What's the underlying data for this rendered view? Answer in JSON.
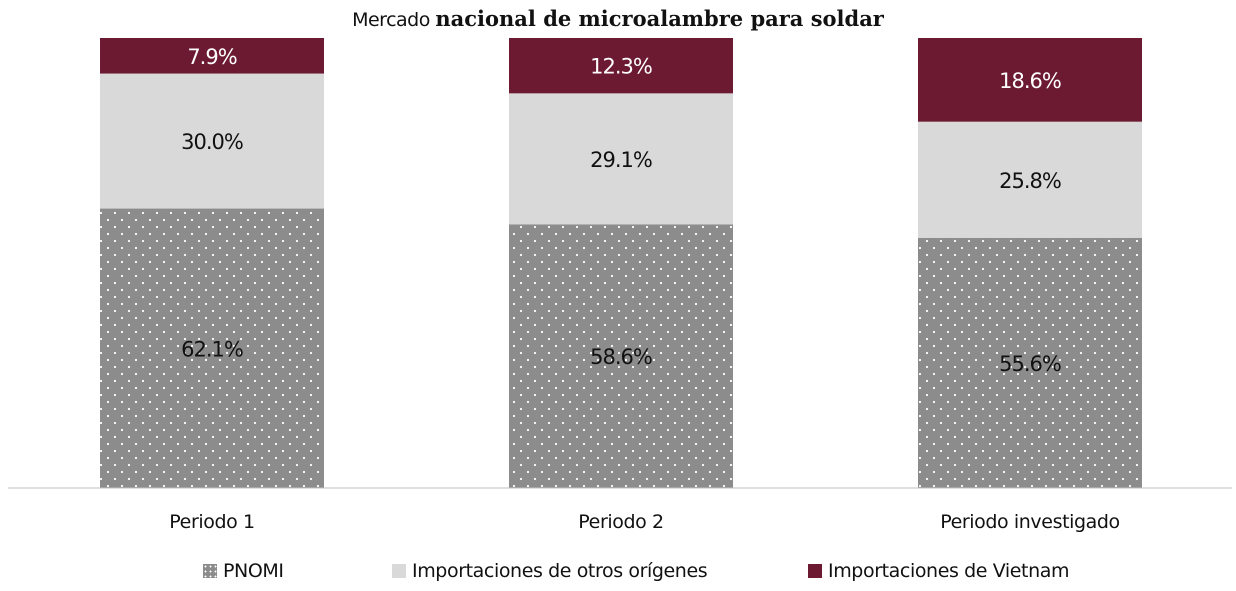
{
  "chart_data": {
    "type": "bar",
    "stacked": true,
    "title_parts": [
      "Mercado ",
      "nacional de microalambre para soldar"
    ],
    "categories": [
      "Periodo 1",
      "Periodo 2",
      "Periodo investigado"
    ],
    "series": [
      {
        "name": "PNOMI",
        "values": [
          62.1,
          58.6,
          55.6
        ],
        "labels": [
          "62.1%",
          "58.6%",
          "55.6%"
        ],
        "color": "#8c8c8c",
        "pattern": "dots"
      },
      {
        "name": "Importaciones de otros orígenes",
        "values": [
          30.0,
          29.1,
          25.8
        ],
        "labels": [
          "30.0%",
          "29.1%",
          "25.8%"
        ],
        "color": "#d9d9d9"
      },
      {
        "name": "Importaciones de Vietnam",
        "values": [
          7.9,
          12.3,
          18.6
        ],
        "labels": [
          "7.9%",
          "12.3%",
          "18.6%"
        ],
        "color": "#6b1a31"
      }
    ],
    "ylim": [
      0,
      100
    ],
    "grid": false,
    "legend_position": "bottom"
  }
}
